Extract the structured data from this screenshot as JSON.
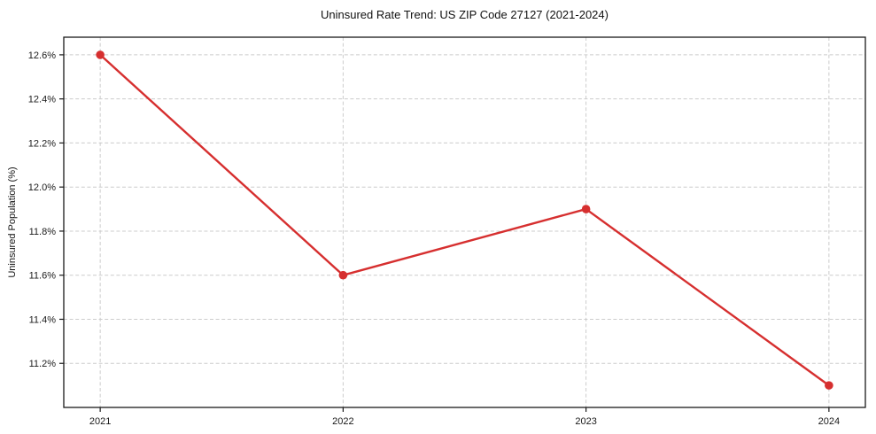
{
  "chart_data": {
    "type": "line",
    "title": "Uninsured Rate Trend: US ZIP Code 27127 (2021-2024)",
    "xlabel": "",
    "ylabel": "Uninsured Population (%)",
    "categories": [
      "2021",
      "2022",
      "2023",
      "2024"
    ],
    "series": [
      {
        "name": "Uninsured Rate",
        "values": [
          12.6,
          11.6,
          11.9,
          11.1
        ]
      }
    ],
    "ylim": [
      11.0,
      12.68
    ],
    "yticks": [
      11.2,
      11.4,
      11.6,
      11.8,
      12.0,
      12.2,
      12.4,
      12.6
    ],
    "ytick_suffix": "%",
    "grid": true,
    "grid_style": "dashed",
    "legend": false,
    "line_color": "#d62f2f",
    "marker": "circle",
    "grid_color": "#cccccc",
    "axis_color": "#1a1a1a",
    "tick_label_color": "#1a1a1a",
    "background": "#ffffff"
  }
}
